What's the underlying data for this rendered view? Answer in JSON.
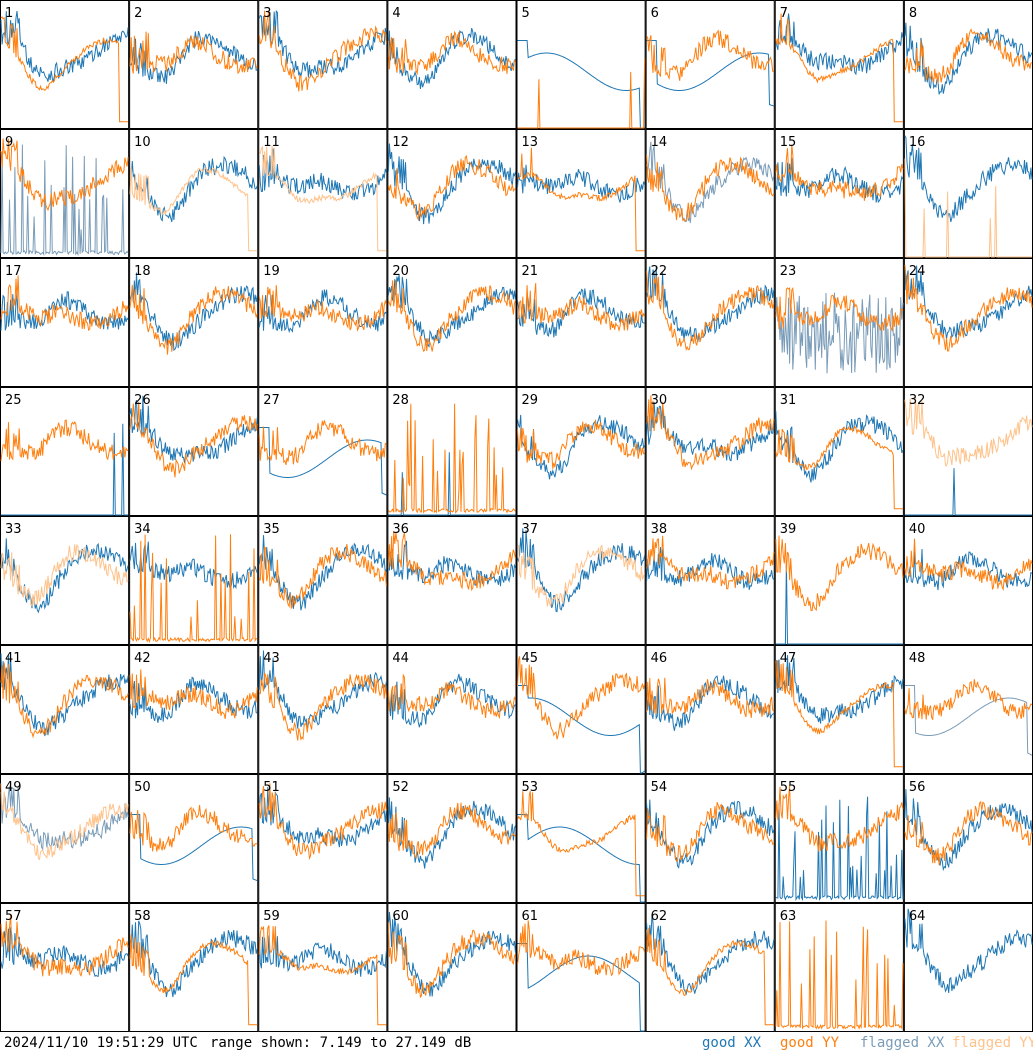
{
  "footer": {
    "timestamp": "2024/11/10 19:51:29 UTC",
    "range": "range shown: 7.149 to 27.149 dB",
    "legend": [
      "good XX",
      "good YY",
      "flagged XX",
      "flagged YY"
    ]
  },
  "colors": {
    "good_xx": "#1f77b4",
    "good_yy": "#ff7f0e",
    "flagged_xx": "#7a9cb8",
    "flagged_yy": "#ffc28a",
    "border": "#000000"
  },
  "chart_data": {
    "type": "line",
    "grid": "8x8 small multiples",
    "y_range_db": [
      7.149,
      27.149
    ],
    "panels": [
      {
        "id": "1",
        "xx": "good",
        "yy": "good",
        "shape_xx": "normal",
        "shape_yy": "rolloff"
      },
      {
        "id": "2",
        "xx": "good",
        "yy": "good",
        "shape_xx": "normal",
        "shape_yy": "normal"
      },
      {
        "id": "3",
        "xx": "good",
        "yy": "good",
        "shape_xx": "normal",
        "shape_yy": "normal"
      },
      {
        "id": "4",
        "xx": "good",
        "yy": "good",
        "shape_xx": "normal",
        "shape_yy": "normal"
      },
      {
        "id": "5",
        "xx": "good",
        "yy": "good",
        "shape_xx": "smooth",
        "shape_yy": "spike"
      },
      {
        "id": "6",
        "xx": "good",
        "yy": "good",
        "shape_xx": "smooth",
        "shape_yy": "normal"
      },
      {
        "id": "7",
        "xx": "good",
        "yy": "good",
        "shape_xx": "normal",
        "shape_yy": "rolloff"
      },
      {
        "id": "8",
        "xx": "good",
        "yy": "good",
        "shape_xx": "normal",
        "shape_yy": "normal"
      },
      {
        "id": "9",
        "xx": "flagged",
        "yy": "good",
        "shape_xx": "spiky-low",
        "shape_yy": "normal"
      },
      {
        "id": "10",
        "xx": "good",
        "yy": "flagged",
        "shape_xx": "normal",
        "shape_yy": "rolloff"
      },
      {
        "id": "11",
        "xx": "good",
        "yy": "flagged",
        "shape_xx": "normal",
        "shape_yy": "rolloff"
      },
      {
        "id": "12",
        "xx": "good",
        "yy": "good",
        "shape_xx": "normal",
        "shape_yy": "normal"
      },
      {
        "id": "13",
        "xx": "good",
        "yy": "good",
        "shape_xx": "normal",
        "shape_yy": "rolloff"
      },
      {
        "id": "14",
        "xx": "flagged",
        "yy": "good",
        "shape_xx": "normal",
        "shape_yy": "normal"
      },
      {
        "id": "15",
        "xx": "good",
        "yy": "good",
        "shape_xx": "normal",
        "shape_yy": "normal"
      },
      {
        "id": "16",
        "xx": "good",
        "yy": "flagged",
        "shape_xx": "normal",
        "shape_yy": "spike"
      },
      {
        "id": "17",
        "xx": "good",
        "yy": "good",
        "shape_xx": "normal",
        "shape_yy": "normal"
      },
      {
        "id": "18",
        "xx": "good",
        "yy": "good",
        "shape_xx": "normal",
        "shape_yy": "normal"
      },
      {
        "id": "19",
        "xx": "good",
        "yy": "good",
        "shape_xx": "normal",
        "shape_yy": "normal"
      },
      {
        "id": "20",
        "xx": "good",
        "yy": "good",
        "shape_xx": "normal",
        "shape_yy": "normal"
      },
      {
        "id": "21",
        "xx": "good",
        "yy": "good",
        "shape_xx": "normal",
        "shape_yy": "normal"
      },
      {
        "id": "22",
        "xx": "good",
        "yy": "good",
        "shape_xx": "normal",
        "shape_yy": "normal"
      },
      {
        "id": "23",
        "xx": "flagged",
        "yy": "good",
        "shape_xx": "noisy-low",
        "shape_yy": "normal"
      },
      {
        "id": "24",
        "xx": "good",
        "yy": "good",
        "shape_xx": "normal",
        "shape_yy": "normal"
      },
      {
        "id": "25",
        "xx": "good",
        "yy": "good",
        "shape_xx": "spike",
        "shape_yy": "normal"
      },
      {
        "id": "26",
        "xx": "good",
        "yy": "good",
        "shape_xx": "normal",
        "shape_yy": "normal"
      },
      {
        "id": "27",
        "xx": "good",
        "yy": "good",
        "shape_xx": "smooth",
        "shape_yy": "normal"
      },
      {
        "id": "28",
        "xx": "good",
        "yy": "good",
        "shape_xx": "spike",
        "shape_yy": "spiky-low"
      },
      {
        "id": "29",
        "xx": "good",
        "yy": "good",
        "shape_xx": "normal",
        "shape_yy": "normal"
      },
      {
        "id": "30",
        "xx": "good",
        "yy": "good",
        "shape_xx": "normal",
        "shape_yy": "normal"
      },
      {
        "id": "31",
        "xx": "good",
        "yy": "good",
        "shape_xx": "normal",
        "shape_yy": "rolloff"
      },
      {
        "id": "32",
        "xx": "good",
        "yy": "flagged",
        "shape_xx": "spike",
        "shape_yy": "normal"
      },
      {
        "id": "33",
        "xx": "good",
        "yy": "flagged",
        "shape_xx": "normal",
        "shape_yy": "normal"
      },
      {
        "id": "34",
        "xx": "good",
        "yy": "good",
        "shape_xx": "normal",
        "shape_yy": "spiky-low"
      },
      {
        "id": "35",
        "xx": "good",
        "yy": "good",
        "shape_xx": "normal",
        "shape_yy": "normal"
      },
      {
        "id": "36",
        "xx": "good",
        "yy": "good",
        "shape_xx": "normal",
        "shape_yy": "normal"
      },
      {
        "id": "37",
        "xx": "good",
        "yy": "flagged",
        "shape_xx": "normal",
        "shape_yy": "normal"
      },
      {
        "id": "38",
        "xx": "good",
        "yy": "good",
        "shape_xx": "normal",
        "shape_yy": "normal"
      },
      {
        "id": "39",
        "xx": "good",
        "yy": "good",
        "shape_xx": "spike",
        "shape_yy": "normal"
      },
      {
        "id": "40",
        "xx": "good",
        "yy": "good",
        "shape_xx": "normal",
        "shape_yy": "normal"
      },
      {
        "id": "41",
        "xx": "good",
        "yy": "good",
        "shape_xx": "normal",
        "shape_yy": "normal"
      },
      {
        "id": "42",
        "xx": "good",
        "yy": "good",
        "shape_xx": "normal",
        "shape_yy": "normal"
      },
      {
        "id": "43",
        "xx": "good",
        "yy": "good",
        "shape_xx": "normal",
        "shape_yy": "normal"
      },
      {
        "id": "44",
        "xx": "good",
        "yy": "good",
        "shape_xx": "normal",
        "shape_yy": "normal"
      },
      {
        "id": "45",
        "xx": "good",
        "yy": "good",
        "shape_xx": "smooth",
        "shape_yy": "normal"
      },
      {
        "id": "46",
        "xx": "good",
        "yy": "good",
        "shape_xx": "normal",
        "shape_yy": "normal"
      },
      {
        "id": "47",
        "xx": "good",
        "yy": "good",
        "shape_xx": "normal",
        "shape_yy": "rolloff"
      },
      {
        "id": "48",
        "xx": "flagged",
        "yy": "good",
        "shape_xx": "smooth",
        "shape_yy": "normal"
      },
      {
        "id": "49",
        "xx": "flagged",
        "yy": "flagged",
        "shape_xx": "normal",
        "shape_yy": "normal"
      },
      {
        "id": "50",
        "xx": "good",
        "yy": "good",
        "shape_xx": "smooth",
        "shape_yy": "normal"
      },
      {
        "id": "51",
        "xx": "good",
        "yy": "good",
        "shape_xx": "normal",
        "shape_yy": "normal"
      },
      {
        "id": "52",
        "xx": "good",
        "yy": "good",
        "shape_xx": "normal",
        "shape_yy": "normal"
      },
      {
        "id": "53",
        "xx": "good",
        "yy": "good",
        "shape_xx": "smooth",
        "shape_yy": "rolloff"
      },
      {
        "id": "54",
        "xx": "good",
        "yy": "good",
        "shape_xx": "normal",
        "shape_yy": "normal"
      },
      {
        "id": "55",
        "xx": "good",
        "yy": "good",
        "shape_xx": "spiky-low",
        "shape_yy": "normal"
      },
      {
        "id": "56",
        "xx": "good",
        "yy": "good",
        "shape_xx": "normal",
        "shape_yy": "normal"
      },
      {
        "id": "57",
        "xx": "good",
        "yy": "good",
        "shape_xx": "normal",
        "shape_yy": "normal"
      },
      {
        "id": "58",
        "xx": "good",
        "yy": "good",
        "shape_xx": "normal",
        "shape_yy": "rolloff"
      },
      {
        "id": "59",
        "xx": "good",
        "yy": "good",
        "shape_xx": "normal",
        "shape_yy": "rolloff"
      },
      {
        "id": "60",
        "xx": "good",
        "yy": "good",
        "shape_xx": "normal",
        "shape_yy": "normal"
      },
      {
        "id": "61",
        "xx": "good",
        "yy": "good",
        "shape_xx": "smooth",
        "shape_yy": "normal"
      },
      {
        "id": "62",
        "xx": "good",
        "yy": "good",
        "shape_xx": "normal",
        "shape_yy": "rolloff"
      },
      {
        "id": "63",
        "xx": "good",
        "yy": "good",
        "shape_xx": "none",
        "shape_yy": "spiky-low"
      },
      {
        "id": "64",
        "xx": "good",
        "yy": "good",
        "shape_xx": "normal",
        "shape_yy": "none"
      }
    ]
  }
}
